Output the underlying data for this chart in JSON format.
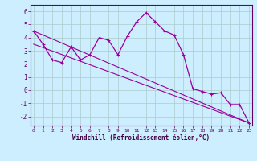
{
  "xlabel": "Windchill (Refroidissement éolien,°C)",
  "background_color": "#cceeff",
  "line_color": "#990099",
  "grid_color": "#aacccc",
  "series1_x": [
    0,
    1,
    2,
    3,
    4,
    5,
    6,
    7,
    8,
    9,
    10,
    11,
    12,
    13,
    14,
    15,
    16,
    17,
    18,
    19,
    20,
    21,
    22,
    23
  ],
  "series1_y": [
    4.5,
    3.5,
    2.3,
    2.1,
    3.3,
    2.3,
    2.7,
    4.0,
    3.8,
    2.7,
    4.1,
    5.2,
    5.9,
    5.2,
    4.5,
    4.2,
    2.7,
    0.1,
    -0.1,
    -0.3,
    -0.2,
    -1.1,
    -1.1,
    -2.5
  ],
  "series2_x": [
    0,
    23
  ],
  "series2_y": [
    4.5,
    -2.5
  ],
  "series3_x": [
    0,
    23
  ],
  "series3_y": [
    3.5,
    -2.5
  ],
  "ylim": [
    -2.7,
    6.5
  ],
  "xlim": [
    -0.3,
    23.3
  ],
  "yticks": [
    -2,
    -1,
    0,
    1,
    2,
    3,
    4,
    5,
    6
  ],
  "xticks": [
    0,
    1,
    2,
    3,
    4,
    5,
    6,
    7,
    8,
    9,
    10,
    11,
    12,
    13,
    14,
    15,
    16,
    17,
    18,
    19,
    20,
    21,
    22,
    23
  ],
  "xtick_labels": [
    "0",
    "1",
    "2",
    "3",
    "4",
    "5",
    "6",
    "7",
    "8",
    "9",
    "10",
    "11",
    "12",
    "13",
    "14",
    "15",
    "16",
    "17",
    "18",
    "19",
    "20",
    "21",
    "22",
    "23"
  ]
}
